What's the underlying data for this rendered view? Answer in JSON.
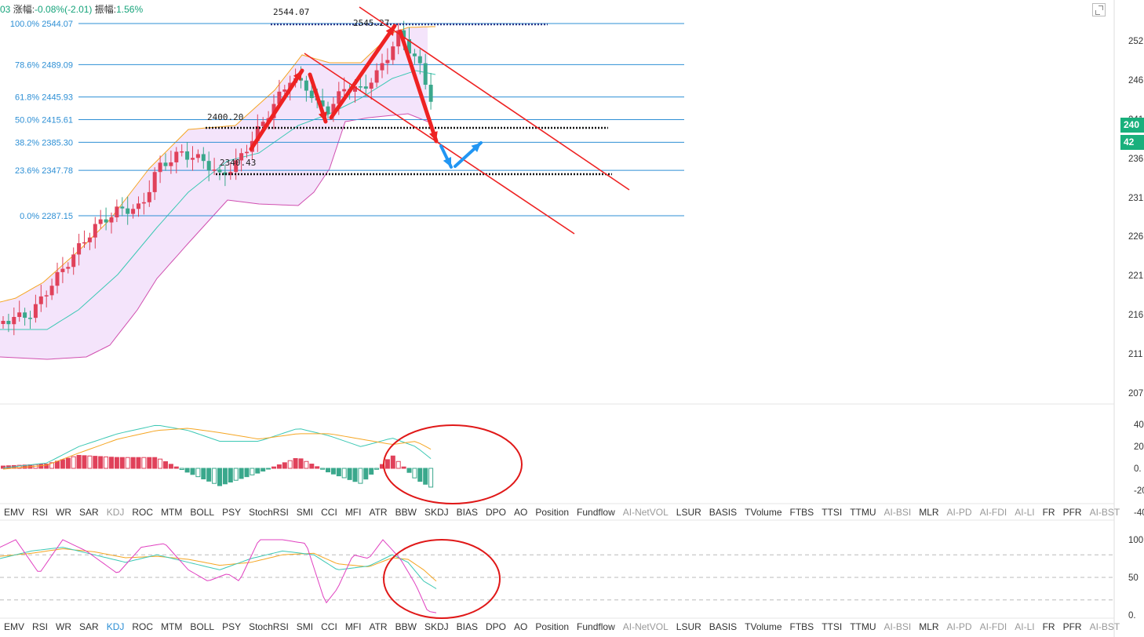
{
  "info": {
    "code_suffix": "03",
    "change_label": "涨幅:",
    "change_value": "-0.08%(-2.01)",
    "amp_label": "振幅:",
    "amp_value": "1.56%"
  },
  "fib_labels": [
    "100.0% 2544.07",
    "78.6% 2489.09",
    "61.8% 2445.93",
    "50.0% 2415.61",
    "38.2% 2385.30",
    "23.6% 2347.78",
    "0.0% 2287.15"
  ],
  "annotations": {
    "top_dotted": "2544.07",
    "peak": "2545.27",
    "mid_dotted": "2400.20",
    "low_dotted": "2340.43"
  },
  "price_axis": [
    "252",
    "246",
    "241",
    "236",
    "231",
    "226",
    "221",
    "216",
    "211",
    "207"
  ],
  "price_tags": [
    "240",
    "42"
  ],
  "macd_axis": [
    "40",
    "20",
    "0.",
    "-20",
    "-40"
  ],
  "kdj_axis": [
    "100",
    "50",
    "0."
  ],
  "tabs": [
    {
      "label": "EMV",
      "state": "normal"
    },
    {
      "label": "RSI",
      "state": "normal"
    },
    {
      "label": "WR",
      "state": "normal"
    },
    {
      "label": "SAR",
      "state": "normal"
    },
    {
      "label": "KDJ",
      "state": "muted"
    },
    {
      "label": "ROC",
      "state": "normal"
    },
    {
      "label": "MTM",
      "state": "normal"
    },
    {
      "label": "BOLL",
      "state": "normal"
    },
    {
      "label": "PSY",
      "state": "normal"
    },
    {
      "label": "StochRSI",
      "state": "normal"
    },
    {
      "label": "SMI",
      "state": "normal"
    },
    {
      "label": "CCI",
      "state": "normal"
    },
    {
      "label": "MFI",
      "state": "normal"
    },
    {
      "label": "ATR",
      "state": "normal"
    },
    {
      "label": "BBW",
      "state": "normal"
    },
    {
      "label": "SKDJ",
      "state": "normal"
    },
    {
      "label": "BIAS",
      "state": "normal"
    },
    {
      "label": "DPO",
      "state": "normal"
    },
    {
      "label": "AO",
      "state": "normal"
    },
    {
      "label": "Position",
      "state": "normal"
    },
    {
      "label": "Fundflow",
      "state": "normal"
    },
    {
      "label": "AI-NetVOL",
      "state": "muted"
    },
    {
      "label": "LSUR",
      "state": "normal"
    },
    {
      "label": "BASIS",
      "state": "normal"
    },
    {
      "label": "TVolume",
      "state": "normal"
    },
    {
      "label": "FTBS",
      "state": "normal"
    },
    {
      "label": "TTSI",
      "state": "normal"
    },
    {
      "label": "TTMU",
      "state": "normal"
    },
    {
      "label": "AI-BSI",
      "state": "muted"
    },
    {
      "label": "MLR",
      "state": "normal"
    },
    {
      "label": "AI-PD",
      "state": "muted"
    },
    {
      "label": "AI-FDI",
      "state": "muted"
    },
    {
      "label": "AI-LI",
      "state": "muted"
    },
    {
      "label": "FR",
      "state": "normal"
    },
    {
      "label": "PFR",
      "state": "normal"
    },
    {
      "label": "AI-BST",
      "state": "muted"
    }
  ],
  "tabs2_active": "KDJ",
  "colors": {
    "up": "#e0415a",
    "down": "#3aa88c",
    "fib": "#2d8fd5",
    "boll_fill": "#f4e4fb",
    "annotation": "#ee2222",
    "arrow_blue": "#2196f3",
    "dif": "#3cc8b4",
    "dea": "#f5a623",
    "j_line": "#e040c0"
  },
  "chart_data": {
    "type": "candlestick",
    "fib_levels": [
      2544.07,
      2489.09,
      2445.93,
      2415.61,
      2385.3,
      2347.78,
      2287.15
    ],
    "ylim": [
      2070,
      2540
    ],
    "note_levels": {
      "peak": 2545.27,
      "mid": 2400.2,
      "low": 2340.43
    }
  }
}
